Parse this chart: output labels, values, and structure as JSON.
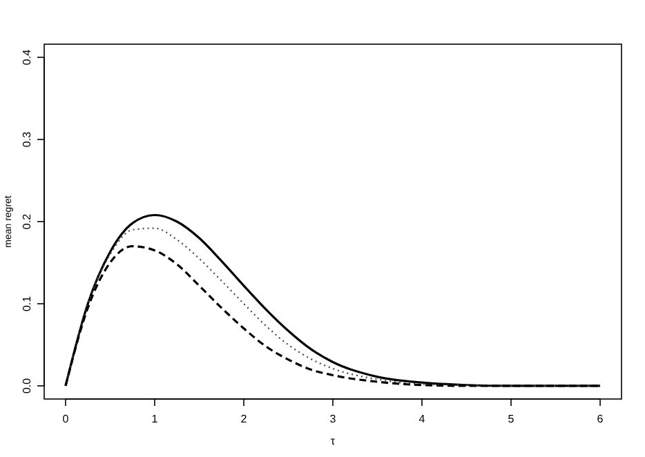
{
  "chart_data": {
    "type": "line",
    "xlabel": "τ",
    "ylabel": "mean regret",
    "x": [
      0,
      0.25,
      0.5,
      0.75,
      1,
      1.25,
      1.5,
      1.75,
      2,
      2.25,
      2.5,
      2.75,
      3,
      3.5,
      4,
      4.5,
      5,
      6
    ],
    "series": [
      {
        "color": "#000000",
        "line_style": "solid",
        "values": [
          0,
          0.1,
          0.163,
          0.198,
          0.208,
          0.2,
          0.18,
          0.152,
          0.122,
          0.093,
          0.067,
          0.045,
          0.029,
          0.011,
          0.004,
          0.001,
          0,
          0
        ]
      },
      {
        "color": "#444444",
        "line_style": "dotted",
        "values": [
          0,
          0.1,
          0.16,
          0.19,
          0.192,
          0.178,
          0.155,
          0.128,
          0.1,
          0.073,
          0.05,
          0.033,
          0.021,
          0.008,
          0.002,
          0.001,
          0,
          0
        ]
      },
      {
        "color": "#000000",
        "line_style": "dashed",
        "values": [
          0,
          0.095,
          0.15,
          0.17,
          0.165,
          0.148,
          0.122,
          0.095,
          0.07,
          0.048,
          0.032,
          0.02,
          0.013,
          0.005,
          0.001,
          0,
          0,
          0
        ]
      }
    ],
    "xlim": [
      -0.24,
      6.24
    ],
    "ylim": [
      -0.016,
      0.416
    ],
    "xticks": [
      0,
      1,
      2,
      3,
      4,
      5,
      6
    ],
    "yticks": [
      {
        "value": 0,
        "label": "0.0"
      },
      {
        "value": 0.1,
        "label": "0.1"
      },
      {
        "value": 0.2,
        "label": "0.2"
      },
      {
        "value": 0.3,
        "label": "0.3"
      },
      {
        "value": 0.4,
        "label": "0.4"
      }
    ]
  }
}
